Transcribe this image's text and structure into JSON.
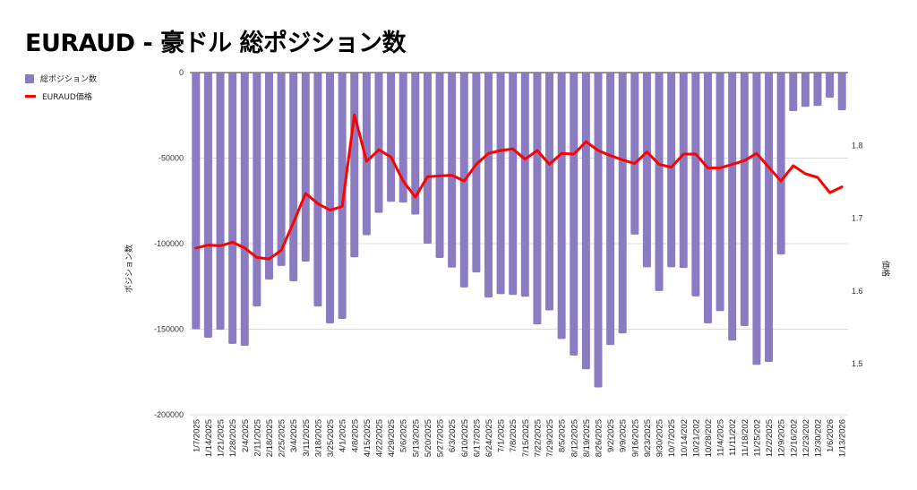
{
  "chart_data": {
    "type": "bar",
    "title": "EURAUD - 豪ドル 総ポジション数",
    "xlabel": "",
    "ylabel": "ポジション数",
    "y2label": "価格",
    "ylim": [
      -200000,
      0
    ],
    "y2lim": [
      1.43,
      1.9
    ],
    "yticks": [
      0,
      -50000,
      -100000,
      -150000,
      -200000
    ],
    "y2ticks": [
      1.5,
      1.6,
      1.7,
      1.8
    ],
    "grid": true,
    "legend_position": "top-left",
    "categories": [
      "1/7/2025",
      "1/14/2025",
      "1/21/2025",
      "1/28/2025",
      "2/4/2025",
      "2/11/2025",
      "2/18/2025",
      "2/25/2025",
      "3/4/2025",
      "3/11/2025",
      "3/18/2025",
      "3/25/2025",
      "4/1/2025",
      "4/8/2025",
      "4/15/2025",
      "4/22/2025",
      "4/29/2025",
      "5/6/2025",
      "5/13/2025",
      "5/20/2025",
      "5/27/2025",
      "6/3/2025",
      "6/10/2025",
      "6/17/2025",
      "6/24/2025",
      "7/1/2025",
      "7/8/2025",
      "7/15/2025",
      "7/22/2025",
      "7/29/2025",
      "8/5/2025",
      "8/12/2025",
      "8/19/2025",
      "8/26/2025",
      "9/2/2025",
      "9/9/2025",
      "9/16/2025",
      "9/23/2025",
      "9/30/2025",
      "10/7/2025",
      "10/14/202",
      "10/21/202",
      "10/28/202",
      "11/4/2025",
      "11/11/202",
      "11/18/202",
      "11/25/202",
      "12/2/2025",
      "12/9/2025",
      "12/16/202",
      "12/23/202",
      "12/30/202",
      "1/6/2026",
      "1/13/2026"
    ],
    "series": [
      {
        "name": "総ポジション数",
        "type": "bar",
        "axis": "left",
        "color": "#8b7cc2",
        "values": [
          -150000,
          -155000,
          -150300,
          -158600,
          -159700,
          -136700,
          -121000,
          -113000,
          -122000,
          -110500,
          -136700,
          -146600,
          -144000,
          -108000,
          -95000,
          -82000,
          -75500,
          -76000,
          -83000,
          -100000,
          -108400,
          -114000,
          -125600,
          -116800,
          -131500,
          -129500,
          -130000,
          -131000,
          -147200,
          -139000,
          -155700,
          -165400,
          -173400,
          -184000,
          -159200,
          -152400,
          -94700,
          -113800,
          -127700,
          -113800,
          -114200,
          -130800,
          -146600,
          -139400,
          -156600,
          -148200,
          -170800,
          -169100,
          -106300,
          -22500,
          -20000,
          -19500,
          -14700,
          -22000
        ]
      },
      {
        "name": "EURAUD価格",
        "type": "line",
        "axis": "right",
        "color": "#ff0000",
        "values": [
          1.659,
          1.663,
          1.662,
          1.667,
          1.659,
          1.646,
          1.644,
          1.656,
          1.694,
          1.734,
          1.72,
          1.711,
          1.716,
          1.842,
          1.778,
          1.794,
          1.784,
          1.751,
          1.729,
          1.757,
          1.758,
          1.759,
          1.751,
          1.774,
          1.789,
          1.793,
          1.795,
          1.781,
          1.793,
          1.774,
          1.789,
          1.788,
          1.805,
          1.793,
          1.786,
          1.78,
          1.775,
          1.791,
          1.774,
          1.77,
          1.788,
          1.788,
          1.769,
          1.769,
          1.774,
          1.779,
          1.789,
          1.77,
          1.751,
          1.772,
          1.761,
          1.756,
          1.735,
          1.743
        ]
      }
    ]
  }
}
